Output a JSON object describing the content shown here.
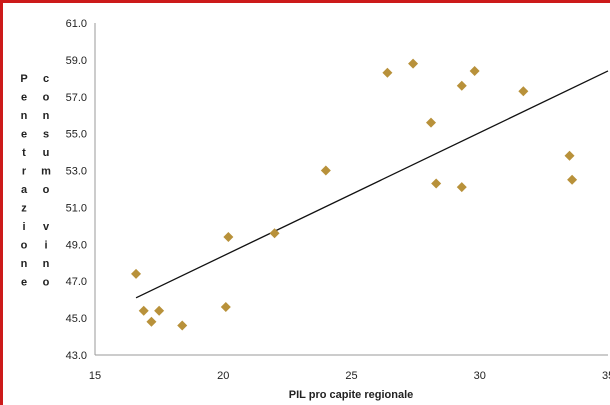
{
  "chart_data": {
    "type": "scatter",
    "title": "",
    "xlabel": "PIL pro capite regionale",
    "ylabel_left": "Penetrazione",
    "ylabel_right": "consumo vino",
    "xlim": [
      15,
      35
    ],
    "ylim": [
      43,
      61
    ],
    "x_ticks": [
      "15",
      "20",
      "25",
      "30",
      "35"
    ],
    "y_ticks": [
      "43.0",
      "45.0",
      "47.0",
      "49.0",
      "51.0",
      "53.0",
      "55.0",
      "57.0",
      "59.0",
      "61.0"
    ],
    "grid": false,
    "legend": false,
    "marker_color": "#b8913a",
    "trendline_color": "#111111",
    "points": [
      {
        "x": 16.6,
        "y": 47.4
      },
      {
        "x": 16.9,
        "y": 45.4
      },
      {
        "x": 17.2,
        "y": 44.8
      },
      {
        "x": 17.5,
        "y": 45.4
      },
      {
        "x": 18.4,
        "y": 44.6
      },
      {
        "x": 20.1,
        "y": 45.6
      },
      {
        "x": 20.2,
        "y": 49.4
      },
      {
        "x": 22.0,
        "y": 49.6
      },
      {
        "x": 24.0,
        "y": 53.0
      },
      {
        "x": 26.4,
        "y": 58.3
      },
      {
        "x": 27.4,
        "y": 58.8
      },
      {
        "x": 28.1,
        "y": 55.6
      },
      {
        "x": 28.3,
        "y": 52.3
      },
      {
        "x": 29.3,
        "y": 57.6
      },
      {
        "x": 29.3,
        "y": 52.1
      },
      {
        "x": 29.8,
        "y": 58.4
      },
      {
        "x": 31.7,
        "y": 57.3
      },
      {
        "x": 33.5,
        "y": 53.8
      },
      {
        "x": 33.6,
        "y": 52.5
      }
    ],
    "trendline": {
      "x": [
        16.6,
        35
      ],
      "y": [
        46.1,
        58.4
      ]
    }
  }
}
